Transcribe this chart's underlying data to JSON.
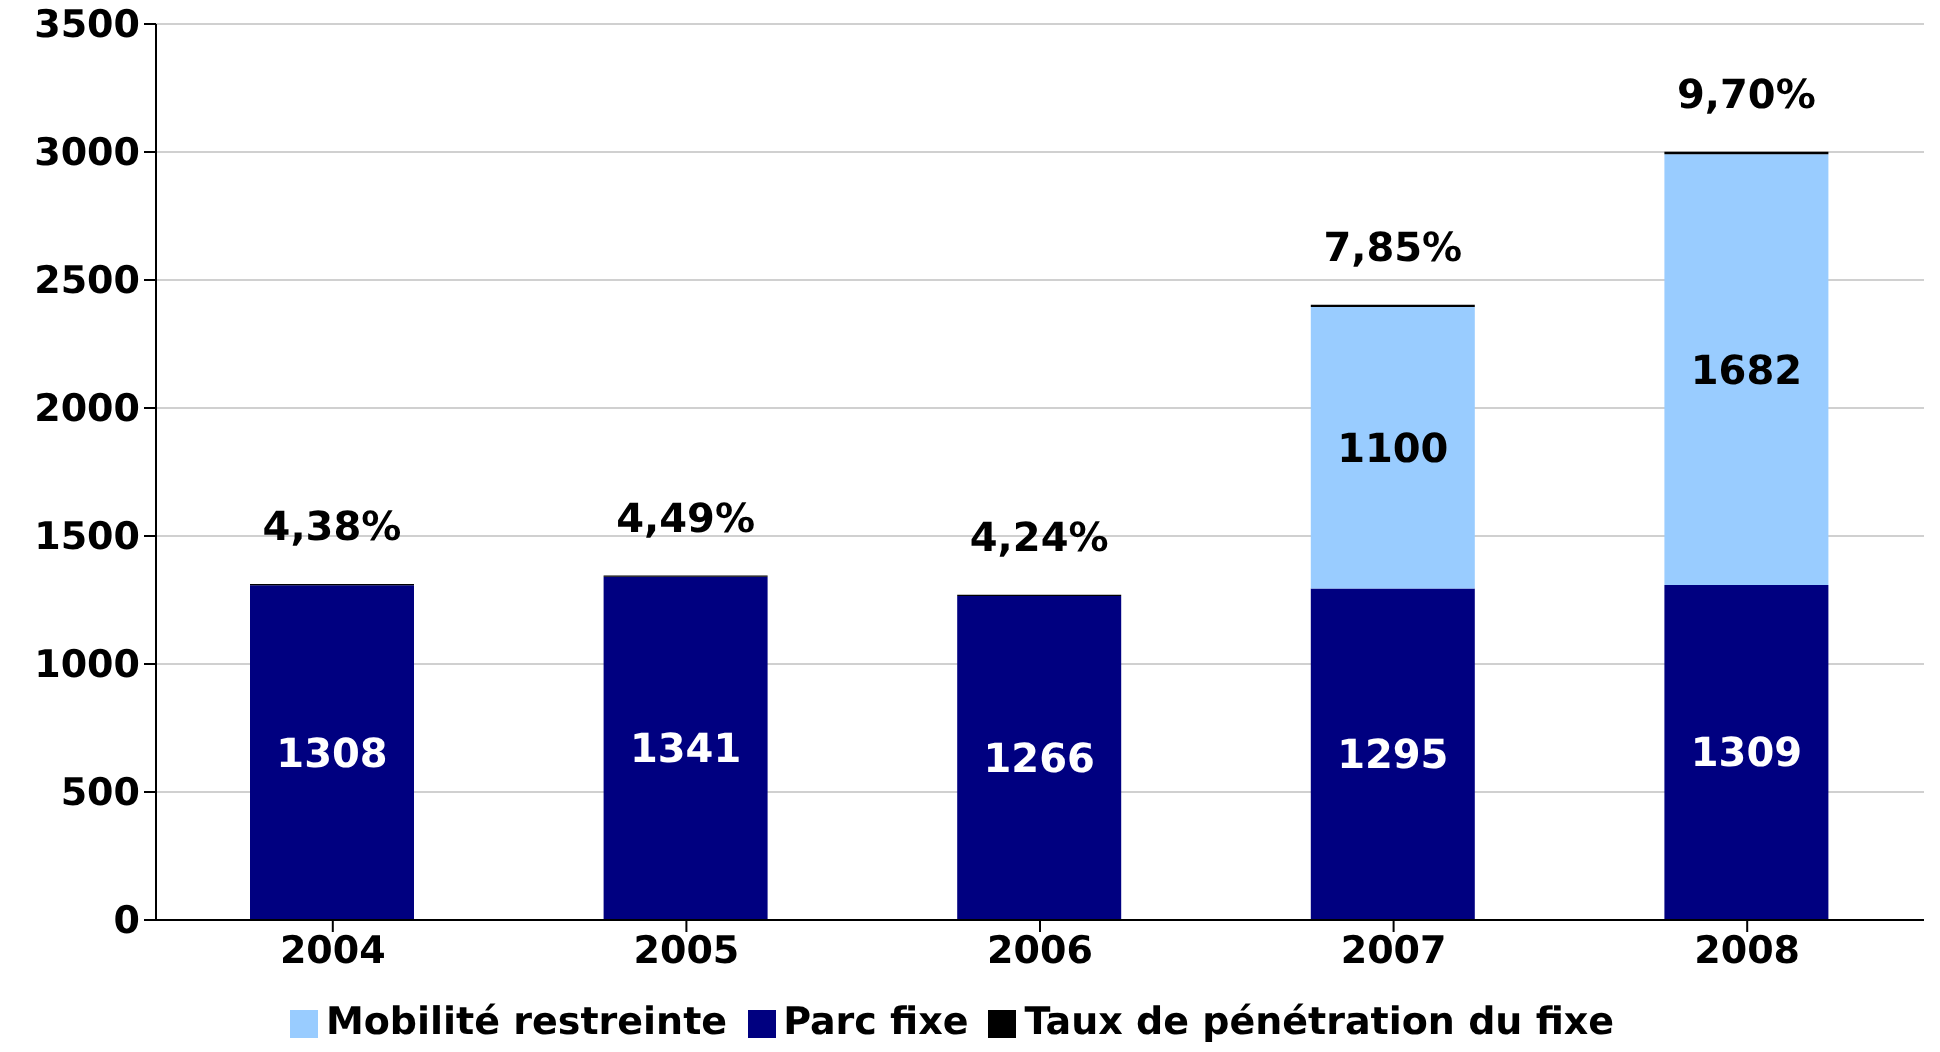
{
  "chart_data": {
    "type": "bar",
    "stacked": true,
    "categories": [
      "2004",
      "2005",
      "2006",
      "2007",
      "2008"
    ],
    "series": [
      {
        "name": "Parc fixe",
        "color": "#000080",
        "values": [
          1308,
          1341,
          1266,
          1295,
          1309
        ],
        "value_labels": [
          "1308",
          "1341",
          "1266",
          "1295",
          "1309"
        ]
      },
      {
        "name": "Mobilité restreinte",
        "color": "#99ccff",
        "values": [
          null,
          null,
          null,
          1100,
          1682
        ],
        "value_labels": [
          null,
          null,
          null,
          "1100",
          "1682"
        ]
      },
      {
        "name": "Taux de pénétration du fixe",
        "color": "#000000",
        "values": [
          4.38,
          4.49,
          4.24,
          7.85,
          9.7
        ],
        "value_labels": [
          "4,38%",
          "4,49%",
          "4,24%",
          "7,85%",
          "9,70%"
        ]
      }
    ],
    "ylim": [
      0,
      3500
    ],
    "yticks": [
      0,
      500,
      1000,
      1500,
      2000,
      2500,
      3000,
      3500
    ],
    "grid": "y",
    "legend": "bottom"
  }
}
